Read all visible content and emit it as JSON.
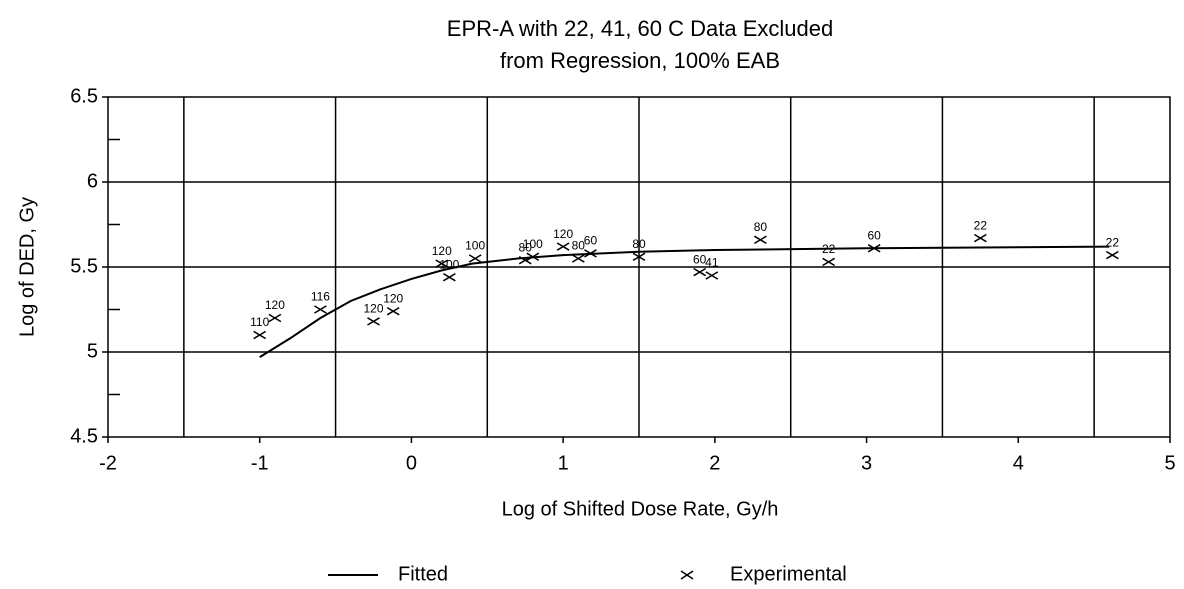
{
  "chart_data": {
    "type": "scatter",
    "title": [
      "EPR-A with 22, 41, 60 C Data Excluded",
      "from Regression, 100% EAB"
    ],
    "x_label": "Log of Shifted Dose Rate, Gy/h",
    "y_label": "Log of DED, Gy",
    "xlim": [
      -2,
      5
    ],
    "ylim": [
      4.5,
      6.5
    ],
    "xticks": [
      -2,
      -1,
      0,
      1,
      2,
      3,
      4,
      5
    ],
    "yticks": [
      4.5,
      5,
      5.5,
      6,
      6.5
    ],
    "xgrid": [
      -1.5,
      -0.5,
      0.5,
      1.5,
      2.5,
      3.5,
      4.5
    ],
    "ygrid": [
      5,
      5.5,
      6
    ],
    "yminor": [
      4.75,
      5.25,
      5.75,
      6.25
    ],
    "series": [
      {
        "name": "Fitted",
        "kind": "line",
        "color": "#000000",
        "x": [
          -1,
          -0.8,
          -0.6,
          -0.4,
          -0.2,
          0,
          0.2,
          0.4,
          0.7,
          1,
          1.5,
          2,
          3,
          4.6
        ],
        "values": [
          4.97,
          5.08,
          5.2,
          5.3,
          5.37,
          5.43,
          5.48,
          5.52,
          5.55,
          5.57,
          5.59,
          5.6,
          5.61,
          5.62
        ]
      },
      {
        "name": "Experimental",
        "kind": "marker",
        "color": "#000000",
        "x": [
          -1.0,
          -0.9,
          -0.6,
          -0.25,
          -0.12,
          0.25,
          0.2,
          0.42,
          0.75,
          0.8,
          1.0,
          1.1,
          1.18,
          1.5,
          1.9,
          1.98,
          2.3,
          2.75,
          3.05,
          3.75,
          4.62
        ],
        "values": [
          5.1,
          5.2,
          5.25,
          5.18,
          5.24,
          5.44,
          5.52,
          5.55,
          5.54,
          5.56,
          5.62,
          5.55,
          5.58,
          5.56,
          5.47,
          5.45,
          5.66,
          5.53,
          5.61,
          5.67,
          5.57
        ],
        "labels": [
          "110",
          "120",
          "116",
          "120",
          "120",
          "100",
          "120",
          "100",
          "80",
          "100",
          "120",
          "80",
          "60",
          "80",
          "60",
          "41",
          "80",
          "22",
          "60",
          "22",
          "22"
        ]
      }
    ],
    "legend": "bottom",
    "grid": true
  }
}
